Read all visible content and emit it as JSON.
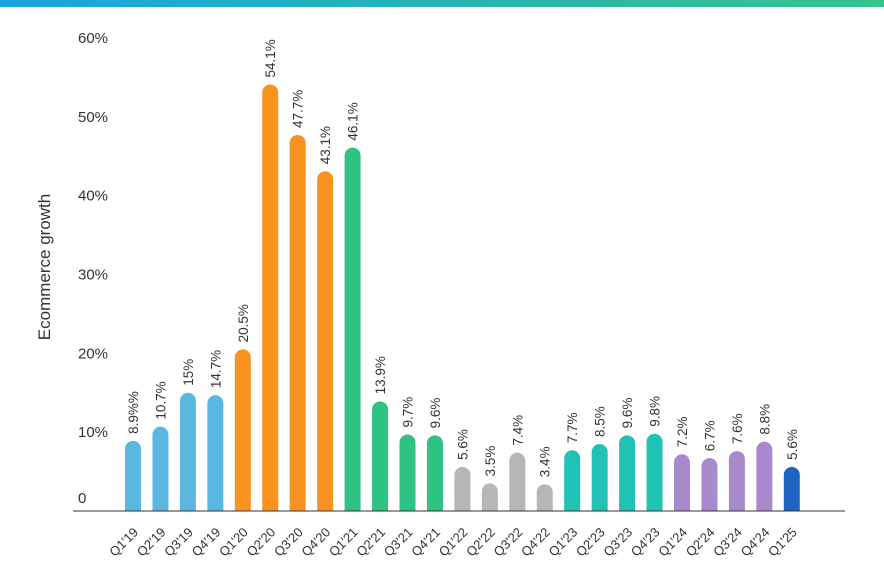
{
  "colors": {
    "top_bar_start": "#1aa3df",
    "top_bar_end": "#34c48b",
    "q2019": "#5ab7e0",
    "q2020": "#f7931e",
    "q2021": "#2ec283",
    "q2022": "#b6b6b6",
    "q2023": "#21c1b5",
    "q2024": "#a889cc",
    "q2025": "#1f64c3",
    "axis": "#333333"
  },
  "chart_data": {
    "type": "bar",
    "ylabel": "Ecommerce growth",
    "xlabel": "",
    "ylim": [
      0,
      60
    ],
    "yticks": [
      {
        "value": 0,
        "label": "0"
      },
      {
        "value": 10,
        "label": "10%"
      },
      {
        "value": 20,
        "label": "20%"
      },
      {
        "value": 30,
        "label": "30%"
      },
      {
        "value": 40,
        "label": "40%"
      },
      {
        "value": 50,
        "label": "50%"
      },
      {
        "value": 60,
        "label": "60%"
      }
    ],
    "grid": false,
    "bars": [
      {
        "category": "Q1'19",
        "value": 8.9,
        "label": "8.9%%",
        "color_key": "q2019"
      },
      {
        "category": "Q2'19",
        "value": 10.7,
        "label": "10.7%",
        "color_key": "q2019"
      },
      {
        "category": "Q3'19",
        "value": 15,
        "label": "15%",
        "color_key": "q2019"
      },
      {
        "category": "Q4'19",
        "value": 14.7,
        "label": "14.7%",
        "color_key": "q2019"
      },
      {
        "category": "Q1'20",
        "value": 20.5,
        "label": "20.5%",
        "color_key": "q2020"
      },
      {
        "category": "Q2'20",
        "value": 54.1,
        "label": "54.1%",
        "color_key": "q2020"
      },
      {
        "category": "Q3'20",
        "value": 47.7,
        "label": "47.7%",
        "color_key": "q2020"
      },
      {
        "category": "Q4'20",
        "value": 43.1,
        "label": "43.1%",
        "color_key": "q2020"
      },
      {
        "category": "Q1'21",
        "value": 46.1,
        "label": "46.1%",
        "color_key": "q2021"
      },
      {
        "category": "Q2'21",
        "value": 13.9,
        "label": "13.9%",
        "color_key": "q2021"
      },
      {
        "category": "Q3'21",
        "value": 9.7,
        "label": "9.7%",
        "color_key": "q2021"
      },
      {
        "category": "Q4'21",
        "value": 9.6,
        "label": "9.6%",
        "color_key": "q2021"
      },
      {
        "category": "Q1'22",
        "value": 5.6,
        "label": "5.6%",
        "color_key": "q2022"
      },
      {
        "category": "Q2'22",
        "value": 3.5,
        "label": "3.5%",
        "color_key": "q2022"
      },
      {
        "category": "Q3'22",
        "value": 7.4,
        "label": "7.4%",
        "color_key": "q2022"
      },
      {
        "category": "Q4'22",
        "value": 3.4,
        "label": "3.4%",
        "color_key": "q2022"
      },
      {
        "category": "Q1'23",
        "value": 7.7,
        "label": "7.7%",
        "color_key": "q2023"
      },
      {
        "category": "Q2'23",
        "value": 8.5,
        "label": "8.5%",
        "color_key": "q2023"
      },
      {
        "category": "Q3'23",
        "value": 9.6,
        "label": "9.6%",
        "color_key": "q2023"
      },
      {
        "category": "Q4'23",
        "value": 9.8,
        "label": "9.8%",
        "color_key": "q2023"
      },
      {
        "category": "Q1'24",
        "value": 7.2,
        "label": "7.2%",
        "color_key": "q2024"
      },
      {
        "category": "Q2'24",
        "value": 6.7,
        "label": "6.7%",
        "color_key": "q2024"
      },
      {
        "category": "Q3'24",
        "value": 7.6,
        "label": "7.6%",
        "color_key": "q2024"
      },
      {
        "category": "Q4'24",
        "value": 8.8,
        "label": "8.8%",
        "color_key": "q2024"
      },
      {
        "category": "Q1'25",
        "value": 5.6,
        "label": "5.6%",
        "color_key": "q2025"
      }
    ]
  }
}
